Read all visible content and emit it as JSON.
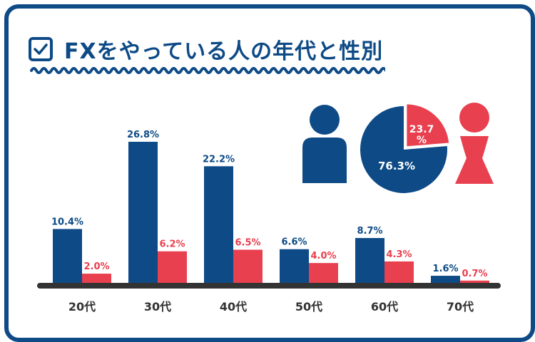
{
  "title": "FXをやっている人の年代と性別",
  "colors": {
    "male": "#0d4a86",
    "female": "#e8404f",
    "axis": "#333333"
  },
  "chart_data": [
    {
      "type": "bar",
      "categories": [
        "20代",
        "30代",
        "40代",
        "50代",
        "60代",
        "70代"
      ],
      "series": [
        {
          "values": [
            10.4,
            26.8,
            22.2,
            6.6,
            8.7,
            1.6
          ],
          "labels": [
            "10.4%",
            "26.8%",
            "22.2%",
            "6.6%",
            "8.7%",
            "1.6%"
          ]
        },
        {
          "values": [
            2.0,
            6.2,
            6.5,
            4.0,
            4.3,
            0.7
          ],
          "labels": [
            "2.0%",
            "6.2%",
            "6.5%",
            "4.0%",
            "4.3%",
            "0.7%"
          ]
        }
      ],
      "ylim": [
        0,
        30
      ]
    },
    {
      "type": "pie",
      "slices": [
        {
          "value": 76.3,
          "label": "76.3%"
        },
        {
          "value": 23.7,
          "label_top": "23.7",
          "label_bottom": "%"
        }
      ]
    }
  ]
}
